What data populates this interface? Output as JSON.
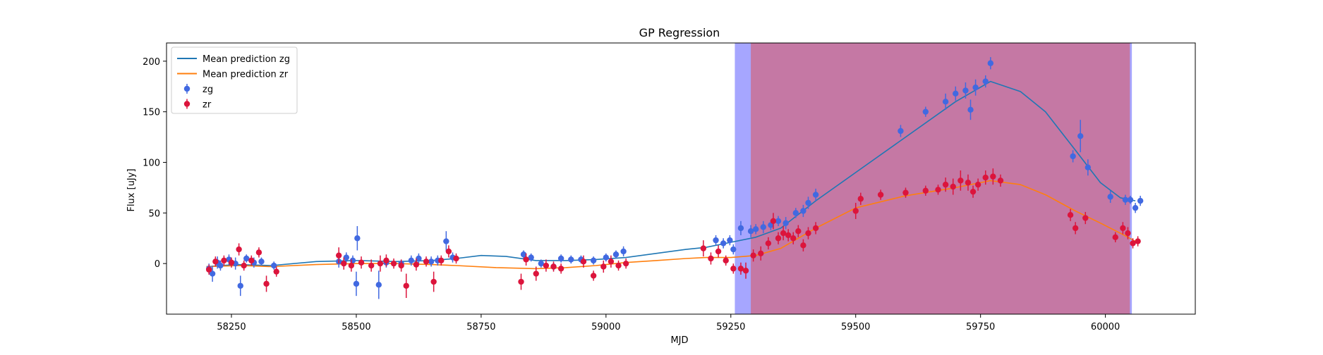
{
  "chart_data": {
    "type": "scatter",
    "title": "GP Regression",
    "xlabel": "MJD",
    "ylabel": "Flux [uJy]",
    "xlim": [
      58120,
      60180
    ],
    "ylim": [
      -50,
      218
    ],
    "x_ticks": [
      58250,
      58500,
      58750,
      59000,
      59250,
      59500,
      59750,
      60000
    ],
    "y_ticks": [
      0,
      50,
      100,
      150,
      200
    ],
    "x_tick_labels": [
      "58250",
      "58500",
      "58750",
      "59000",
      "59250",
      "59500",
      "59750",
      "60000"
    ],
    "y_tick_labels": [
      "0",
      "50",
      "100",
      "150",
      "200"
    ],
    "grid": false,
    "legend_position": "top-left",
    "shaded_regions": [
      {
        "x": [
          59258,
          60053
        ],
        "color": "#8080ff",
        "alpha": 0.7
      },
      {
        "x": [
          59290,
          60049
        ],
        "color": "#e34a4a",
        "alpha": 0.5
      }
    ],
    "series": [
      {
        "name": "Mean prediction zg",
        "kind": "line",
        "color": "#1f77b4",
        "points": [
          [
            58200,
            -3
          ],
          [
            58260,
            -1
          ],
          [
            58330,
            -2
          ],
          [
            58420,
            2
          ],
          [
            58500,
            3
          ],
          [
            58580,
            2
          ],
          [
            58650,
            3
          ],
          [
            58700,
            5
          ],
          [
            58750,
            8
          ],
          [
            58800,
            7
          ],
          [
            58860,
            3
          ],
          [
            58920,
            3
          ],
          [
            58980,
            4
          ],
          [
            59040,
            6
          ],
          [
            59100,
            10
          ],
          [
            59160,
            14
          ],
          [
            59200,
            16
          ],
          [
            59250,
            21
          ],
          [
            59300,
            26
          ],
          [
            59350,
            35
          ],
          [
            59420,
            62
          ],
          [
            59500,
            90
          ],
          [
            59600,
            125
          ],
          [
            59700,
            160
          ],
          [
            59770,
            180
          ],
          [
            59830,
            170
          ],
          [
            59880,
            150
          ],
          [
            59940,
            112
          ],
          [
            59990,
            80
          ],
          [
            60030,
            65
          ],
          [
            60060,
            62
          ]
        ]
      },
      {
        "name": "Mean prediction zr",
        "kind": "line",
        "color": "#ff7f0e",
        "points": [
          [
            58200,
            -3
          ],
          [
            58270,
            -2
          ],
          [
            58330,
            -3
          ],
          [
            58420,
            -1
          ],
          [
            58500,
            0
          ],
          [
            58580,
            0
          ],
          [
            58650,
            -1
          ],
          [
            58700,
            -2
          ],
          [
            58780,
            -4
          ],
          [
            58860,
            -5
          ],
          [
            58920,
            -4
          ],
          [
            58980,
            -2
          ],
          [
            59040,
            1
          ],
          [
            59100,
            3
          ],
          [
            59160,
            5
          ],
          [
            59200,
            6
          ],
          [
            59250,
            6
          ],
          [
            59300,
            8
          ],
          [
            59350,
            15
          ],
          [
            59420,
            35
          ],
          [
            59500,
            55
          ],
          [
            59600,
            67
          ],
          [
            59700,
            75
          ],
          [
            59770,
            82
          ],
          [
            59830,
            78
          ],
          [
            59880,
            68
          ],
          [
            59940,
            52
          ],
          [
            59990,
            40
          ],
          [
            60030,
            30
          ],
          [
            60060,
            22
          ]
        ]
      },
      {
        "name": "zg",
        "kind": "errorbar",
        "color": "#4169e1",
        "points": [
          [
            58205,
            -5,
            5
          ],
          [
            58212,
            -10,
            8
          ],
          [
            58222,
            1,
            6
          ],
          [
            58228,
            -2,
            5
          ],
          [
            58245,
            4,
            5
          ],
          [
            58258,
            0,
            6
          ],
          [
            58268,
            -22,
            10
          ],
          [
            58280,
            5,
            4
          ],
          [
            58295,
            1,
            5
          ],
          [
            58310,
            2,
            4
          ],
          [
            58335,
            -2,
            4
          ],
          [
            58465,
            2,
            6
          ],
          [
            58480,
            6,
            5
          ],
          [
            58493,
            3,
            5
          ],
          [
            58500,
            -20,
            12
          ],
          [
            58502,
            25,
            12
          ],
          [
            58545,
            -21,
            14
          ],
          [
            58560,
            1,
            5
          ],
          [
            58590,
            0,
            4
          ],
          [
            58610,
            3,
            5
          ],
          [
            58625,
            5,
            5
          ],
          [
            58650,
            2,
            5
          ],
          [
            58663,
            3,
            5
          ],
          [
            58680,
            22,
            10
          ],
          [
            58693,
            6,
            5
          ],
          [
            58835,
            9,
            4
          ],
          [
            58850,
            6,
            4
          ],
          [
            58870,
            0,
            4
          ],
          [
            58895,
            -3,
            4
          ],
          [
            58910,
            5,
            4
          ],
          [
            58930,
            4,
            4
          ],
          [
            58950,
            4,
            4
          ],
          [
            58975,
            3,
            4
          ],
          [
            59000,
            6,
            4
          ],
          [
            59020,
            9,
            4
          ],
          [
            59035,
            12,
            5
          ],
          [
            59220,
            23,
            5
          ],
          [
            59235,
            20,
            5
          ],
          [
            59248,
            23,
            5
          ],
          [
            59255,
            14,
            5
          ],
          [
            59270,
            35,
            7
          ],
          [
            59290,
            32,
            6
          ],
          [
            59300,
            34,
            5
          ],
          [
            59315,
            36,
            6
          ],
          [
            59330,
            38,
            5
          ],
          [
            59345,
            42,
            5
          ],
          [
            59360,
            40,
            6
          ],
          [
            59380,
            50,
            5
          ],
          [
            59395,
            52,
            6
          ],
          [
            59405,
            60,
            6
          ],
          [
            59420,
            68,
            6
          ],
          [
            59590,
            131,
            6
          ],
          [
            59640,
            150,
            5
          ],
          [
            59680,
            160,
            8
          ],
          [
            59700,
            168,
            7
          ],
          [
            59720,
            171,
            8
          ],
          [
            59730,
            152,
            10
          ],
          [
            59740,
            174,
            8
          ],
          [
            59760,
            180,
            6
          ],
          [
            59770,
            198,
            6
          ],
          [
            59935,
            106,
            6
          ],
          [
            59950,
            126,
            16
          ],
          [
            59965,
            95,
            8
          ],
          [
            60010,
            66,
            6
          ],
          [
            60040,
            63,
            5
          ],
          [
            60050,
            63,
            4
          ],
          [
            60060,
            55,
            5
          ],
          [
            60070,
            62,
            5
          ]
        ]
      },
      {
        "name": "zr",
        "kind": "errorbar",
        "color": "#dc143c",
        "points": [
          [
            58205,
            -6,
            5
          ],
          [
            58218,
            2,
            5
          ],
          [
            58235,
            3,
            5
          ],
          [
            58250,
            1,
            5
          ],
          [
            58265,
            14,
            6
          ],
          [
            58275,
            -2,
            5
          ],
          [
            58290,
            3,
            5
          ],
          [
            58305,
            11,
            5
          ],
          [
            58320,
            -20,
            8
          ],
          [
            58340,
            -8,
            5
          ],
          [
            58465,
            8,
            8
          ],
          [
            58475,
            0,
            6
          ],
          [
            58490,
            -2,
            6
          ],
          [
            58510,
            1,
            6
          ],
          [
            58530,
            -2,
            6
          ],
          [
            58548,
            0,
            8
          ],
          [
            58560,
            3,
            6
          ],
          [
            58575,
            0,
            5
          ],
          [
            58590,
            -2,
            6
          ],
          [
            58600,
            -22,
            12
          ],
          [
            58620,
            -1,
            6
          ],
          [
            58640,
            2,
            5
          ],
          [
            58655,
            -18,
            10
          ],
          [
            58670,
            3,
            5
          ],
          [
            58685,
            12,
            6
          ],
          [
            58700,
            5,
            5
          ],
          [
            58830,
            -18,
            8
          ],
          [
            58840,
            4,
            6
          ],
          [
            58860,
            -10,
            7
          ],
          [
            58880,
            -2,
            6
          ],
          [
            58895,
            -3,
            5
          ],
          [
            58910,
            -5,
            5
          ],
          [
            58955,
            2,
            6
          ],
          [
            58975,
            -12,
            5
          ],
          [
            58995,
            -3,
            6
          ],
          [
            59010,
            2,
            6
          ],
          [
            59025,
            -2,
            5
          ],
          [
            59040,
            0,
            5
          ],
          [
            59195,
            15,
            8
          ],
          [
            59210,
            5,
            6
          ],
          [
            59225,
            12,
            6
          ],
          [
            59240,
            3,
            5
          ],
          [
            59255,
            -5,
            5
          ],
          [
            59270,
            -5,
            6
          ],
          [
            59280,
            -7,
            8
          ],
          [
            59295,
            8,
            6
          ],
          [
            59310,
            10,
            7
          ],
          [
            59325,
            20,
            6
          ],
          [
            59335,
            42,
            8
          ],
          [
            59345,
            25,
            6
          ],
          [
            59355,
            30,
            7
          ],
          [
            59365,
            28,
            6
          ],
          [
            59375,
            25,
            6
          ],
          [
            59385,
            32,
            6
          ],
          [
            59395,
            18,
            6
          ],
          [
            59405,
            30,
            6
          ],
          [
            59420,
            35,
            6
          ],
          [
            59500,
            52,
            8
          ],
          [
            59510,
            64,
            6
          ],
          [
            59550,
            68,
            5
          ],
          [
            59600,
            70,
            5
          ],
          [
            59640,
            72,
            5
          ],
          [
            59665,
            73,
            5
          ],
          [
            59680,
            78,
            7
          ],
          [
            59695,
            76,
            8
          ],
          [
            59710,
            82,
            10
          ],
          [
            59725,
            80,
            8
          ],
          [
            59735,
            71,
            6
          ],
          [
            59745,
            78,
            6
          ],
          [
            59760,
            85,
            7
          ],
          [
            59775,
            86,
            8
          ],
          [
            59790,
            82,
            6
          ],
          [
            59930,
            48,
            6
          ],
          [
            59940,
            35,
            6
          ],
          [
            59960,
            45,
            6
          ],
          [
            60020,
            26,
            5
          ],
          [
            60035,
            35,
            6
          ],
          [
            60045,
            30,
            6
          ],
          [
            60055,
            20,
            5
          ],
          [
            60065,
            22,
            5
          ]
        ]
      }
    ]
  }
}
